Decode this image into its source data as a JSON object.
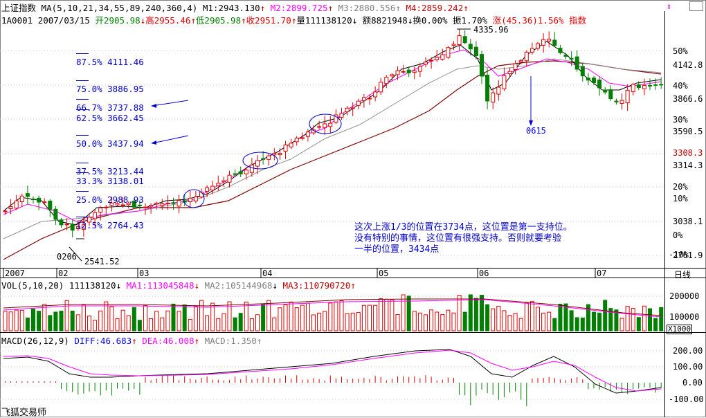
{
  "header": {
    "index_name": "上证指数",
    "ma_label": "MA(5,10,21,34,55,89,240,360,4)",
    "m1": "M1:2943.130",
    "m2": "M2:2899.725",
    "m3": "M3:2880.556",
    "m4": "M4:2859.242",
    "code": "1A0001",
    "date": "2007/03/15",
    "open": "开2905.98",
    "high": "高2955.46",
    "low": "低2905.98",
    "close": "收2951.70",
    "volume": "量111138120",
    "amount": "额8821948",
    "turnover": "换0.00%",
    "amplitude": "振1.70%",
    "change": "涨(45.36)1.56%",
    "index_tab": "指数"
  },
  "fib_levels": [
    {
      "label": "87.5% 4111.46"
    },
    {
      "label": "75.0% 3886.95"
    },
    {
      "label": "66.7% 3737.88"
    },
    {
      "label": "62.5% 3662.45"
    },
    {
      "label": "50.0% 3437.94"
    },
    {
      "label": "37.5% 3213.44"
    },
    {
      "label": "33.3% 3138.01"
    },
    {
      "label": "25.0% 2988.93"
    },
    {
      "label": "12.5% 2764.43"
    }
  ],
  "annotations": {
    "peak": "4335.96",
    "low_date": "0206",
    "low_value": "2541.52",
    "mark_0615": "0615",
    "note_lines": [
      "这次上涨1/3的位置在3734点，这位置是第一支持位。",
      "没有特别的事情，这位置有很强支持。否则就要考验",
      "一半的位置，3434点"
    ]
  },
  "price_axis": {
    "labels": [
      "50%",
      "4142.8",
      "40%",
      "3866.6",
      "30%",
      "3590.5",
      "3308.3",
      "3314.3",
      "20%",
      "10%",
      "3038.1",
      "0%",
      "2761.9",
      "-10%"
    ]
  },
  "date_axis": {
    "labels": [
      "2007",
      "02",
      "03",
      "04",
      "05",
      "06",
      "07"
    ],
    "period": "日线"
  },
  "volume_panel": {
    "title": "VOL(5,10,20)",
    "vol": "111138120",
    "ma1": "MA1:113045848",
    "ma2": "MA2:105144968",
    "ma3": "MA3:110790720",
    "axis": [
      "200000",
      "100000"
    ],
    "unit": "X1000"
  },
  "macd_panel": {
    "title": "MACD(26,12,9)",
    "diff": "DIFF:46.683",
    "dea": "DEA:46.008",
    "macd": "MACD:1.350",
    "axis": [
      "200.00",
      "100.00",
      "0.00",
      "-100.00"
    ]
  },
  "footer": {
    "brand": "飞狐交易师"
  },
  "colors": {
    "up": "#e00000",
    "down": "#008000",
    "ma5": "#000000",
    "ma10": "#ff00ff",
    "ma21": "#808080",
    "ma34": "#800000",
    "fib": "#0000cc"
  },
  "chart_data": [
    {
      "type": "candlestick",
      "title": "上证指数",
      "x": [
        "2007-01",
        "2007-02",
        "2007-03",
        "2007-04",
        "2007-05",
        "2007-06",
        "2007-07"
      ],
      "ohlc_approx": [
        {
          "x": "2007-01",
          "open": 2700,
          "high": 2990,
          "low": 2600,
          "close": 2850
        },
        {
          "x": "2007-02",
          "open": 2850,
          "high": 3040,
          "low": 2541.52,
          "close": 2880
        },
        {
          "x": "2007-03",
          "open": 2880,
          "high": 3200,
          "low": 2820,
          "close": 3180
        },
        {
          "x": "2007-04",
          "open": 3180,
          "high": 3840,
          "low": 3150,
          "close": 3820
        },
        {
          "x": "2007-05",
          "open": 3830,
          "high": 4335.96,
          "low": 3500,
          "close": 4100
        },
        {
          "x": "2007-06",
          "open": 4100,
          "high": 4300,
          "low": 3400,
          "close": 3830
        },
        {
          "x": "2007-07",
          "open": 3830,
          "high": 4080,
          "low": 3550,
          "close": 3880
        }
      ],
      "fib_range": [
        2541.52,
        4335.96
      ]
    },
    {
      "type": "bar",
      "title": "VOL(5,10,20)",
      "ylim": [
        0,
        250000
      ],
      "unit": "X1000"
    },
    {
      "type": "line",
      "title": "MACD(26,12,9)",
      "series": [
        {
          "name": "DIFF"
        },
        {
          "name": "DEA"
        },
        {
          "name": "MACD"
        }
      ],
      "ylim": [
        -130,
        230
      ]
    }
  ]
}
